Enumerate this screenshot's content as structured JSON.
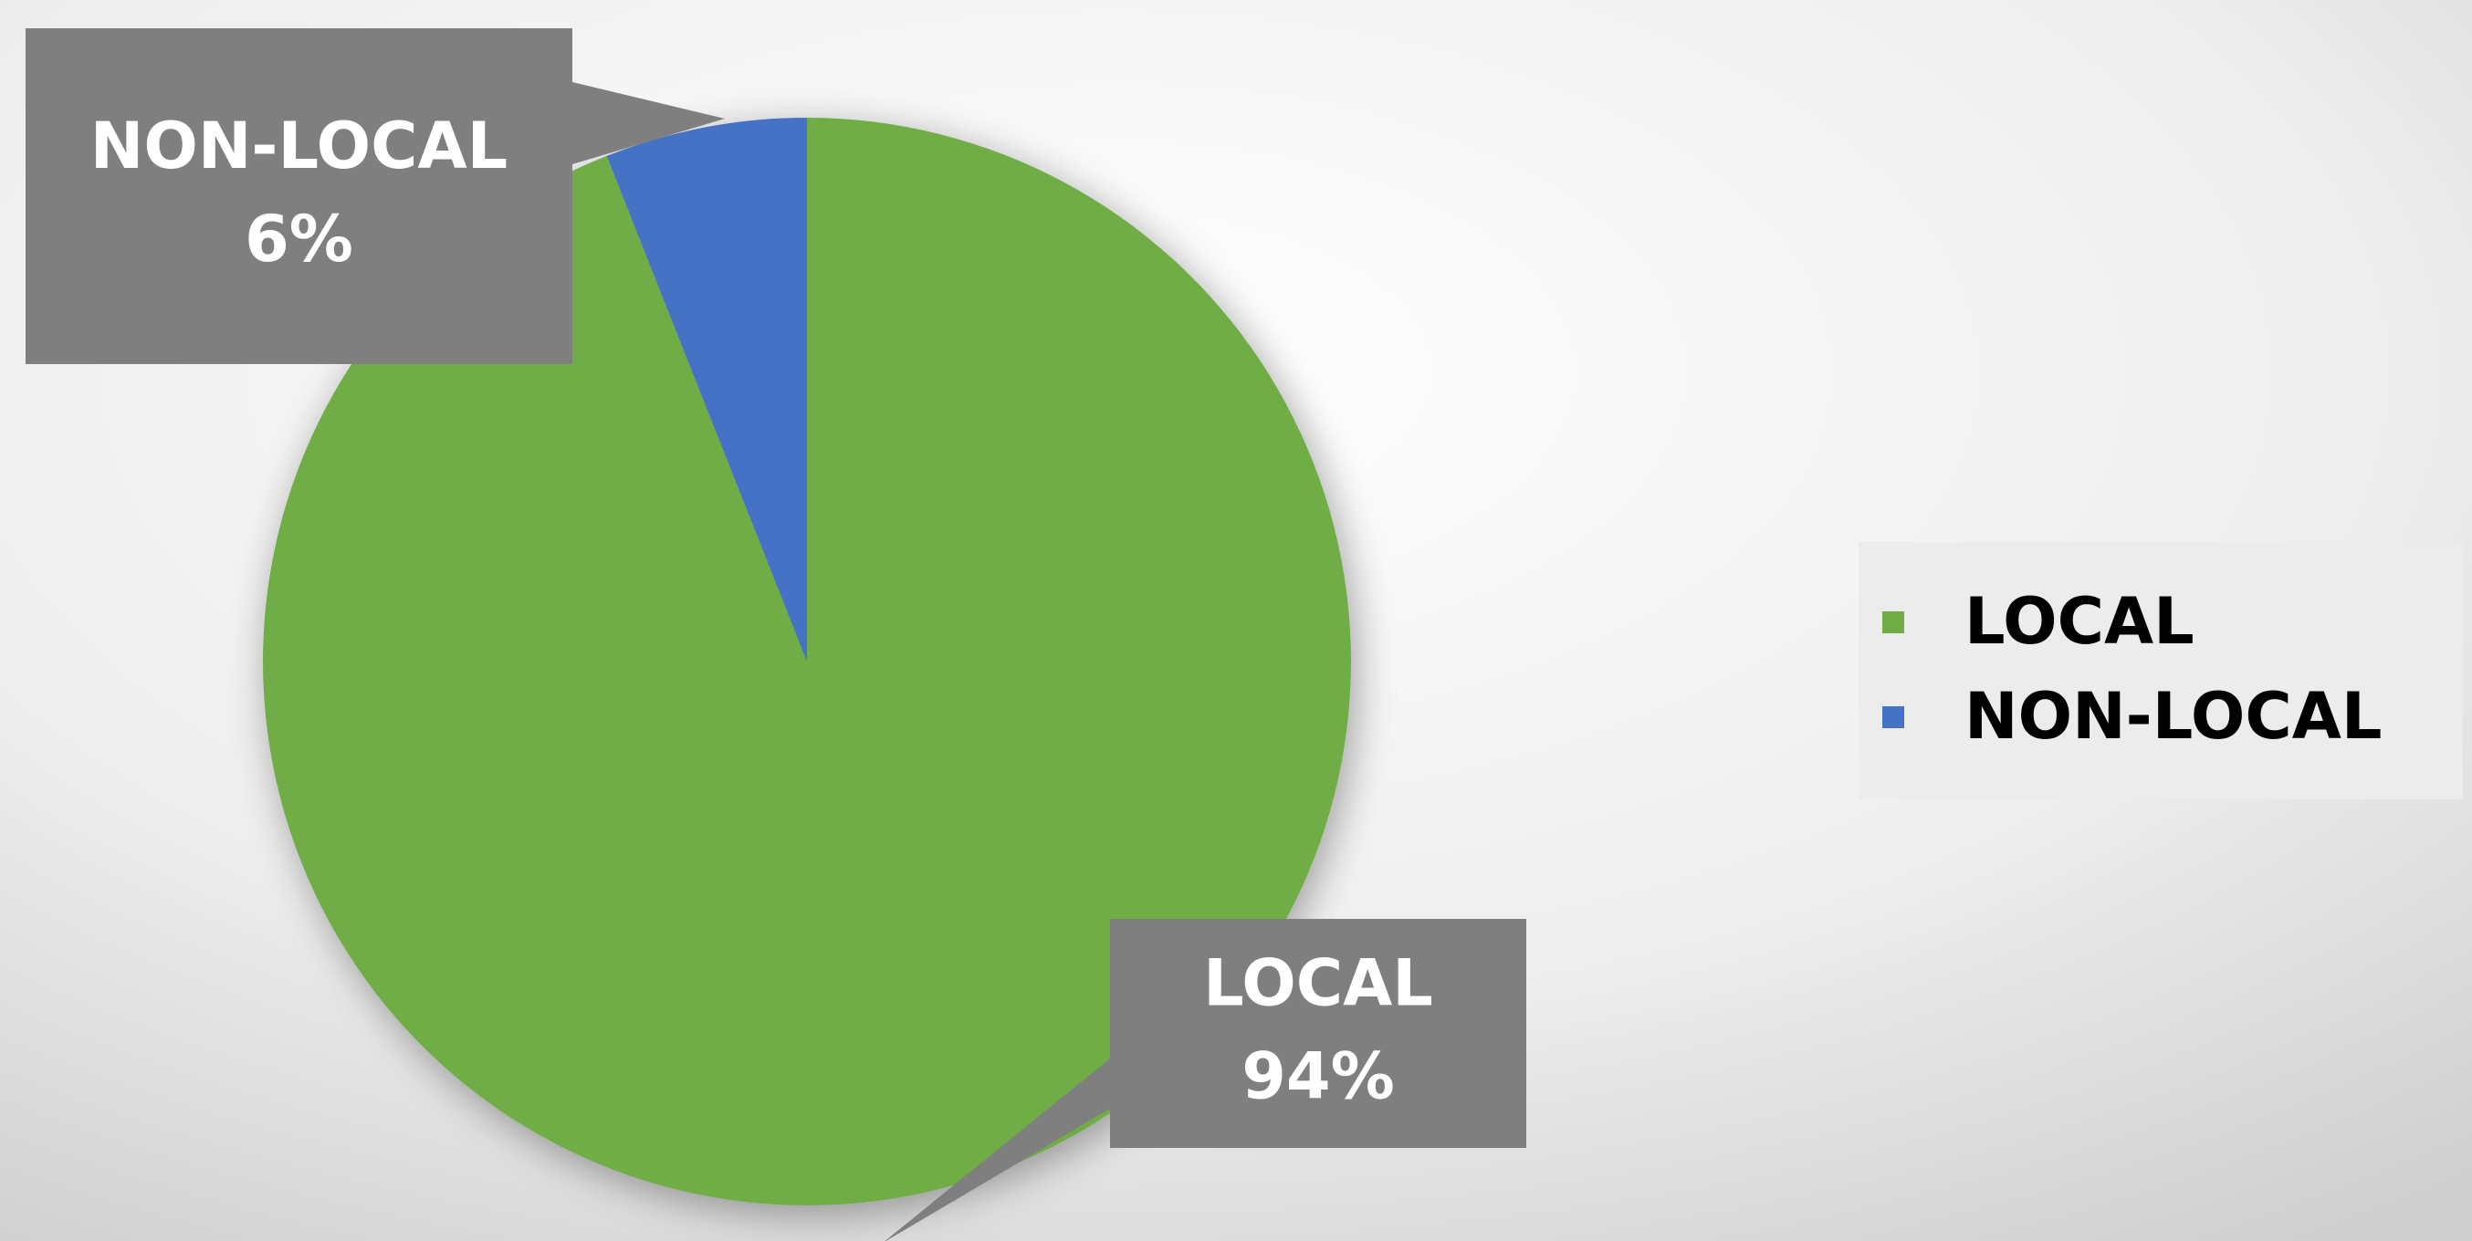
{
  "chart_data": {
    "type": "pie",
    "categories": [
      "LOCAL",
      "NON-LOCAL"
    ],
    "values": [
      94,
      6
    ],
    "value_labels": [
      "94%",
      "6%"
    ],
    "colors": [
      "#70ad47",
      "#4472c4"
    ],
    "legend": "right"
  }
}
